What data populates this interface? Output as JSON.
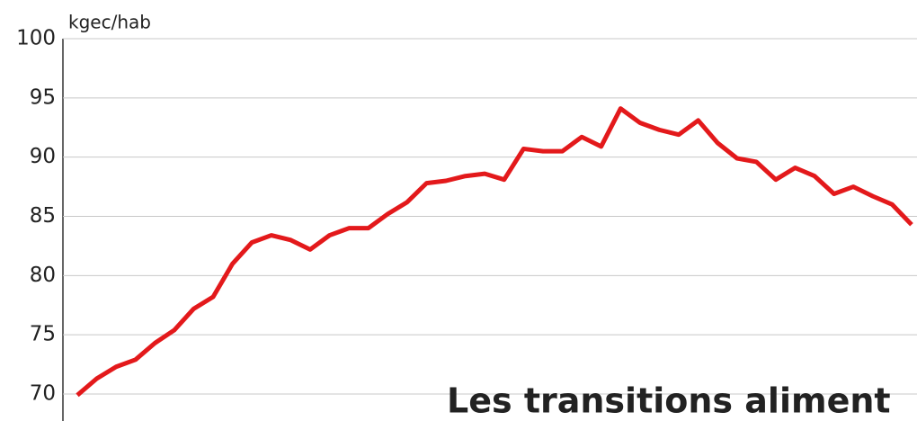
{
  "chart_data": {
    "type": "line",
    "y_label": "kgec/hab",
    "annotation": "Les transitions aliment",
    "categories": [
      null,
      null,
      null,
      null,
      null,
      null,
      null,
      null,
      null,
      null,
      null,
      null,
      null,
      null,
      null,
      null,
      null,
      null,
      null,
      null,
      null,
      null,
      null,
      null,
      null,
      null,
      null,
      null,
      null,
      null,
      null,
      null,
      null,
      null,
      null,
      null,
      null,
      null,
      null,
      null,
      null,
      null,
      null,
      null
    ],
    "series": [
      {
        "color": "#e3191b",
        "values": [
          69.9,
          71.3,
          72.3,
          72.9,
          74.3,
          75.4,
          77.2,
          78.2,
          81,
          82.8,
          83.4,
          83,
          82.2,
          83.4,
          84,
          84,
          85.2,
          86.2,
          87.8,
          88,
          88.4,
          88.6,
          88.1,
          90.7,
          90.5,
          90.5,
          91.7,
          90.9,
          94.1,
          92.9,
          92.3,
          91.9,
          93.1,
          91.2,
          89.9,
          89.6,
          88.1,
          89.1,
          88.4,
          86.9,
          87.5,
          86.7,
          86,
          84.3
        ]
      }
    ],
    "ylim": [
      70,
      100
    ],
    "yticks": [
      70,
      75,
      80,
      85,
      90,
      95,
      100
    ],
    "grid": true
  }
}
